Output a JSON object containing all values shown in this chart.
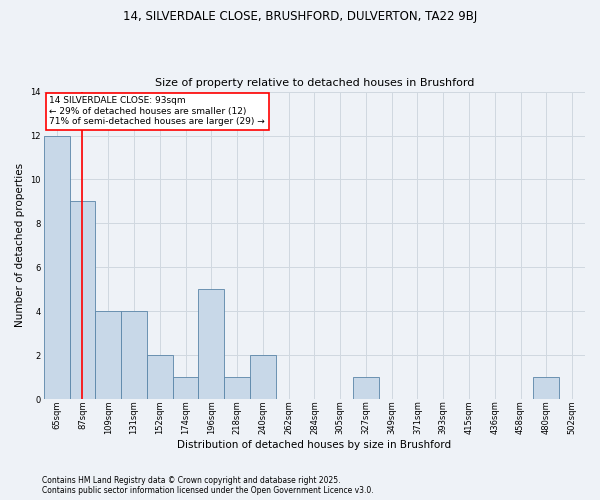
{
  "title_line1": "14, SILVERDALE CLOSE, BRUSHFORD, DULVERTON, TA22 9BJ",
  "title_line2": "Size of property relative to detached houses in Brushford",
  "xlabel": "Distribution of detached houses by size in Brushford",
  "ylabel": "Number of detached properties",
  "footnote": "Contains HM Land Registry data © Crown copyright and database right 2025.\nContains public sector information licensed under the Open Government Licence v3.0.",
  "categories": [
    "65sqm",
    "87sqm",
    "109sqm",
    "131sqm",
    "152sqm",
    "174sqm",
    "196sqm",
    "218sqm",
    "240sqm",
    "262sqm",
    "284sqm",
    "305sqm",
    "327sqm",
    "349sqm",
    "371sqm",
    "393sqm",
    "415sqm",
    "436sqm",
    "458sqm",
    "480sqm",
    "502sqm"
  ],
  "values": [
    12,
    9,
    4,
    4,
    2,
    1,
    5,
    1,
    2,
    0,
    0,
    0,
    1,
    0,
    0,
    0,
    0,
    0,
    0,
    1,
    0
  ],
  "bar_color": "#c8d8e8",
  "bar_edge_color": "#5a85a8",
  "grid_color": "#d0d8e0",
  "background_color": "#eef2f7",
  "annotation_box_text": "14 SILVERDALE CLOSE: 93sqm\n← 29% of detached houses are smaller (12)\n71% of semi-detached houses are larger (29) →",
  "annotation_box_color": "white",
  "annotation_box_edge_color": "red",
  "vline_x_index": 1,
  "vline_color": "red",
  "ylim": [
    0,
    14
  ],
  "yticks": [
    0,
    2,
    4,
    6,
    8,
    10,
    12,
    14
  ],
  "title_fontsize": 8.5,
  "subtitle_fontsize": 8,
  "xlabel_fontsize": 7.5,
  "ylabel_fontsize": 7.5,
  "tick_fontsize": 6,
  "annot_fontsize": 6.5,
  "footnote_fontsize": 5.5
}
